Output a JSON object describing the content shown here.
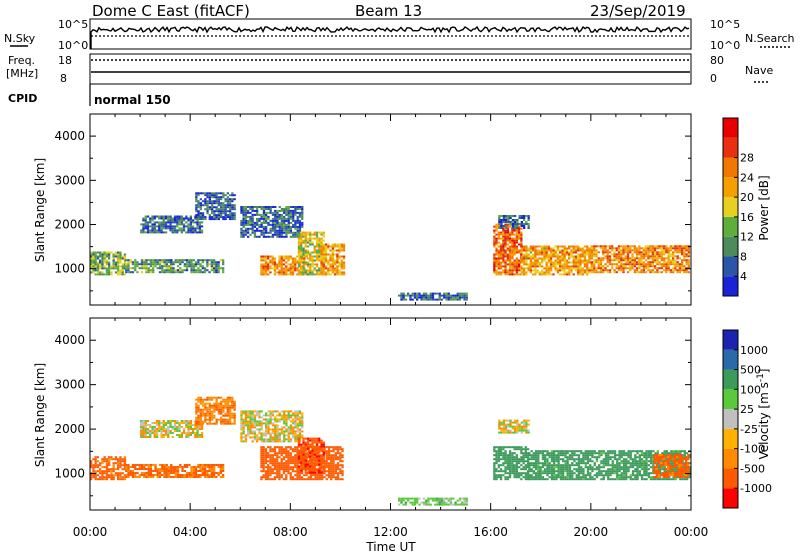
{
  "header": {
    "station": "Dome C East (fitACF)",
    "beam": "Beam 13",
    "date": "23/Sep/2019"
  },
  "status_panels": {
    "nsky_label": "N.Sky",
    "nsky_top": "10^5",
    "nsky_bottom": "10^0",
    "nsearch_label": "N.Search",
    "nsearch_top": "10^5",
    "nsearch_bottom": "10^0",
    "freq_label": "Freq.",
    "freq_unit": "[MHz]",
    "freq_top": "18",
    "freq_bottom": "8",
    "nave_label": "Nave",
    "nave_top": "80",
    "nave_bottom": "0",
    "cpid_label": "CPID",
    "cpid_value": "normal 150"
  },
  "colors": {
    "power": [
      "#1a24d6",
      "#2a55a8",
      "#4d8a5c",
      "#5fae3c",
      "#e8d020",
      "#f5a000",
      "#f07800",
      "#e83010",
      "#e80000"
    ],
    "velocity": [
      "#ff0000",
      "#ff5a00",
      "#ff8c00",
      "#ffb000",
      "#c0c0c0",
      "#5cc83c",
      "#3c9a5a",
      "#2a6aa8",
      "#1a24b0"
    ]
  },
  "chart_data": [
    {
      "type": "heatmap",
      "name": "power",
      "ylabel": "Slant Range [km]",
      "xlim": [
        0,
        24
      ],
      "ylim": [
        180,
        4500
      ],
      "yticks": [
        1000,
        2000,
        3000,
        4000
      ],
      "colorbar": {
        "label": "Power [dB]",
        "range": [
          0,
          32
        ],
        "ticks": [
          "4",
          "8",
          "12",
          "16",
          "20",
          "24",
          "28"
        ]
      },
      "regions": [
        {
          "t": [
            0.0,
            1.4
          ],
          "r": [
            850,
            1350
          ],
          "v": 12
        },
        {
          "t": [
            1.4,
            3.2
          ],
          "r": [
            900,
            1200
          ],
          "v": 10
        },
        {
          "t": [
            3.2,
            5.3
          ],
          "r": [
            900,
            1200
          ],
          "v": 9
        },
        {
          "t": [
            2.0,
            4.5
          ],
          "r": [
            1800,
            2200
          ],
          "v": 6
        },
        {
          "t": [
            4.2,
            5.8
          ],
          "r": [
            2100,
            2700
          ],
          "v": 5
        },
        {
          "t": [
            6.0,
            8.5
          ],
          "r": [
            1700,
            2400
          ],
          "v": 6
        },
        {
          "t": [
            6.8,
            8.6
          ],
          "r": [
            850,
            1300
          ],
          "v": 22
        },
        {
          "t": [
            8.3,
            9.3
          ],
          "r": [
            850,
            1800
          ],
          "v": 16
        },
        {
          "t": [
            9.2,
            10.1
          ],
          "r": [
            850,
            1550
          ],
          "v": 20
        },
        {
          "t": [
            12.3,
            15.0
          ],
          "r": [
            280,
            420
          ],
          "v": 6
        },
        {
          "t": [
            16.1,
            17.2
          ],
          "r": [
            850,
            2000
          ],
          "v": 24
        },
        {
          "t": [
            17.2,
            20.0
          ],
          "r": [
            850,
            1500
          ],
          "v": 20
        },
        {
          "t": [
            20.0,
            23.9
          ],
          "r": [
            900,
            1500
          ],
          "v": 22
        },
        {
          "t": [
            16.3,
            17.5
          ],
          "r": [
            1900,
            2200
          ],
          "v": 6
        }
      ]
    },
    {
      "type": "heatmap",
      "name": "velocity",
      "ylabel": "Slant Range [km]",
      "xlabel": "Time UT",
      "xlim": [
        0,
        24
      ],
      "ylim": [
        180,
        4500
      ],
      "yticks": [
        1000,
        2000,
        3000,
        4000
      ],
      "xticks": [
        "00:00",
        "04:00",
        "08:00",
        "12:00",
        "16:00",
        "20:00",
        "00:00"
      ],
      "colorbar": {
        "label": "Velocity [m s^-1]",
        "range": [
          -1500,
          1500
        ],
        "ticks": [
          "1000",
          "500",
          "100",
          "25",
          "-25",
          "-100",
          "-500",
          "-1000"
        ]
      },
      "regions": [
        {
          "t": [
            0.0,
            1.4
          ],
          "r": [
            850,
            1350
          ],
          "v": -150
        },
        {
          "t": [
            1.4,
            5.3
          ],
          "r": [
            900,
            1200
          ],
          "v": -120
        },
        {
          "t": [
            2.0,
            4.5
          ],
          "r": [
            1800,
            2200
          ],
          "v": 0
        },
        {
          "t": [
            4.2,
            5.8
          ],
          "r": [
            2100,
            2700
          ],
          "v": -80
        },
        {
          "t": [
            6.0,
            8.5
          ],
          "r": [
            1700,
            2400
          ],
          "v": 0
        },
        {
          "t": [
            6.8,
            10.1
          ],
          "r": [
            850,
            1600
          ],
          "v": -200
        },
        {
          "t": [
            8.3,
            9.3
          ],
          "r": [
            1000,
            1800
          ],
          "v": -400
        },
        {
          "t": [
            12.3,
            15.0
          ],
          "r": [
            280,
            420
          ],
          "v": 60
        },
        {
          "t": [
            16.1,
            17.5
          ],
          "r": [
            850,
            1600
          ],
          "v": 250
        },
        {
          "t": [
            17.5,
            23.9
          ],
          "r": [
            850,
            1500
          ],
          "v": 180
        },
        {
          "t": [
            16.3,
            17.5
          ],
          "r": [
            1900,
            2200
          ],
          "v": 0
        },
        {
          "t": [
            22.5,
            23.9
          ],
          "r": [
            900,
            1400
          ],
          "v": -150
        }
      ]
    }
  ]
}
